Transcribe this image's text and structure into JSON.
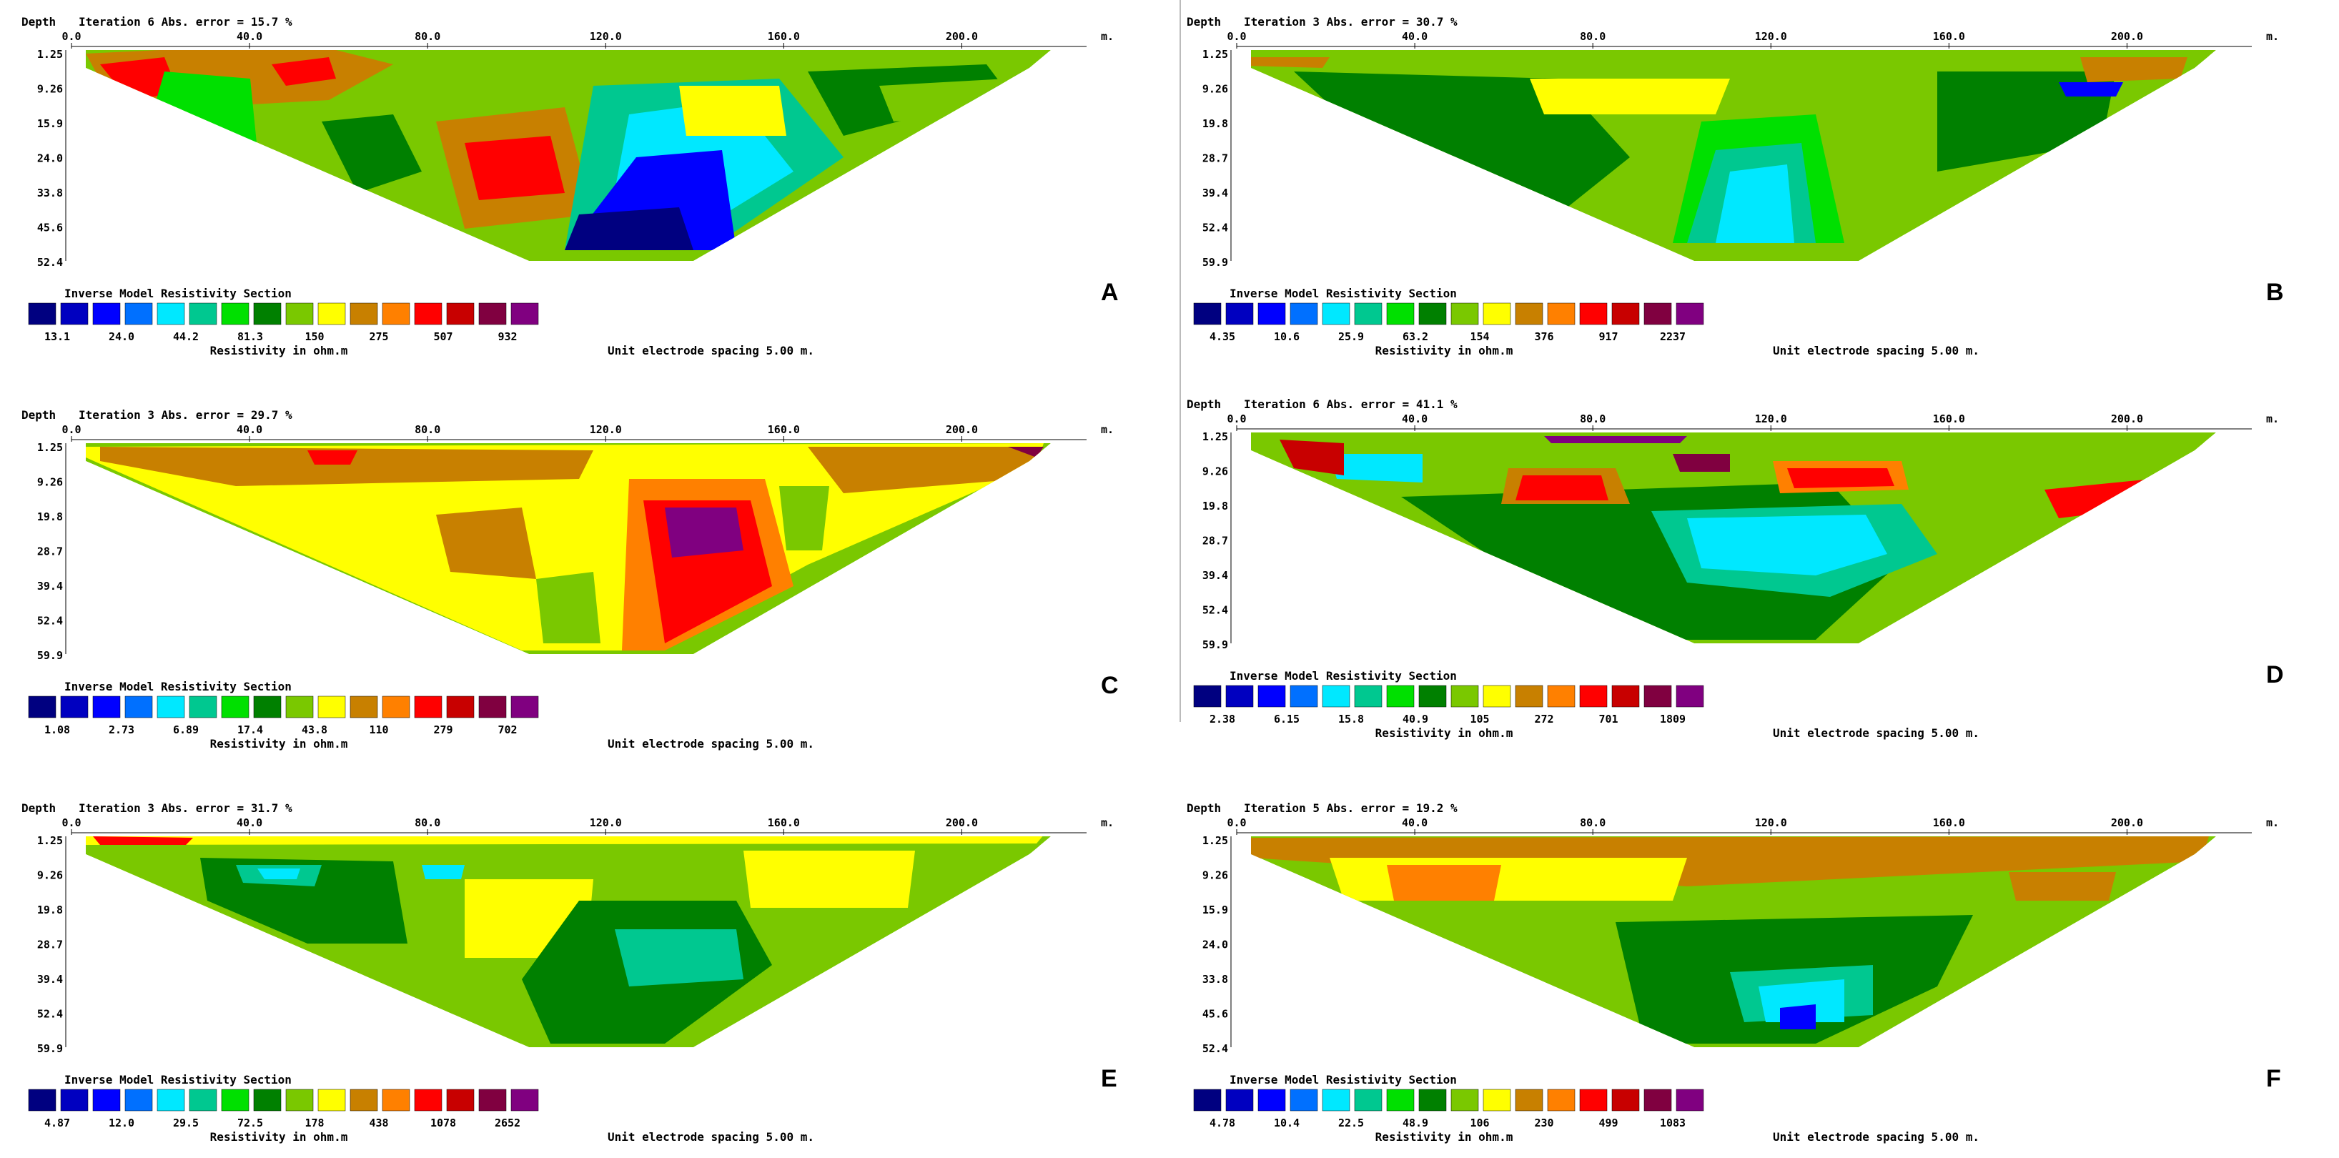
{
  "shared": {
    "depth_label": "Depth",
    "x_unit": "m.",
    "colorbar_title": "Inverse Model Resistivity Section",
    "colorbar_units": "Resistivity in ohm.m",
    "spacing": "Unit electrode spacing 5.00 m.",
    "x_ticks": [
      "0.0",
      "40.0",
      "80.0",
      "120.0",
      "160.0",
      "200.0"
    ],
    "palette": [
      "#000080",
      "#0000c0",
      "#0000ff",
      "#0070ff",
      "#00e8ff",
      "#00c890",
      "#00e000",
      "#008000",
      "#7ac800",
      "#ffff00",
      "#c88000",
      "#ff8000",
      "#ff0000",
      "#c80000",
      "#800040",
      "#800080"
    ]
  },
  "panels": [
    {
      "id": "A",
      "header": "Iteration 6 Abs. error = 15.7 %",
      "depths": [
        "1.25",
        "9.26",
        "15.9",
        "24.0",
        "33.8",
        "45.6",
        "52.4"
      ],
      "legend_values": [
        "13.1",
        "24.0",
        "44.2",
        "81.3",
        "150",
        "275",
        "507",
        "932"
      ]
    },
    {
      "id": "B",
      "header": "Iteration 3 Abs. error = 30.7 %",
      "depths": [
        "1.25",
        "9.26",
        "19.8",
        "28.7",
        "39.4",
        "52.4",
        "59.9"
      ],
      "legend_values": [
        "4.35",
        "10.6",
        "25.9",
        "63.2",
        "154",
        "376",
        "917",
        "2237"
      ]
    },
    {
      "id": "C",
      "header": "Iteration 3 Abs. error = 29.7 %",
      "depths": [
        "1.25",
        "9.26",
        "19.8",
        "28.7",
        "39.4",
        "52.4",
        "59.9"
      ],
      "legend_values": [
        "1.08",
        "2.73",
        "6.89",
        "17.4",
        "43.8",
        "110",
        "279",
        "702"
      ]
    },
    {
      "id": "D",
      "header": "Iteration 6 Abs. error = 41.1 %",
      "depths": [
        "1.25",
        "9.26",
        "19.8",
        "28.7",
        "39.4",
        "52.4",
        "59.9"
      ],
      "legend_values": [
        "2.38",
        "6.15",
        "15.8",
        "40.9",
        "105",
        "272",
        "701",
        "1809"
      ]
    },
    {
      "id": "E",
      "header": "Iteration 3 Abs. error = 31.7 %",
      "depths": [
        "1.25",
        "9.26",
        "19.8",
        "28.7",
        "39.4",
        "52.4",
        "59.9"
      ],
      "legend_values": [
        "4.87",
        "12.0",
        "29.5",
        "72.5",
        "178",
        "438",
        "1078",
        "2652"
      ]
    },
    {
      "id": "F",
      "header": "Iteration 5 Abs. error = 19.2 %",
      "depths": [
        "1.25",
        "9.26",
        "15.9",
        "24.0",
        "33.8",
        "45.6",
        "52.4"
      ],
      "legend_values": [
        "4.78",
        "10.4",
        "22.5",
        "48.9",
        "106",
        "230",
        "499",
        "1083"
      ]
    }
  ]
}
